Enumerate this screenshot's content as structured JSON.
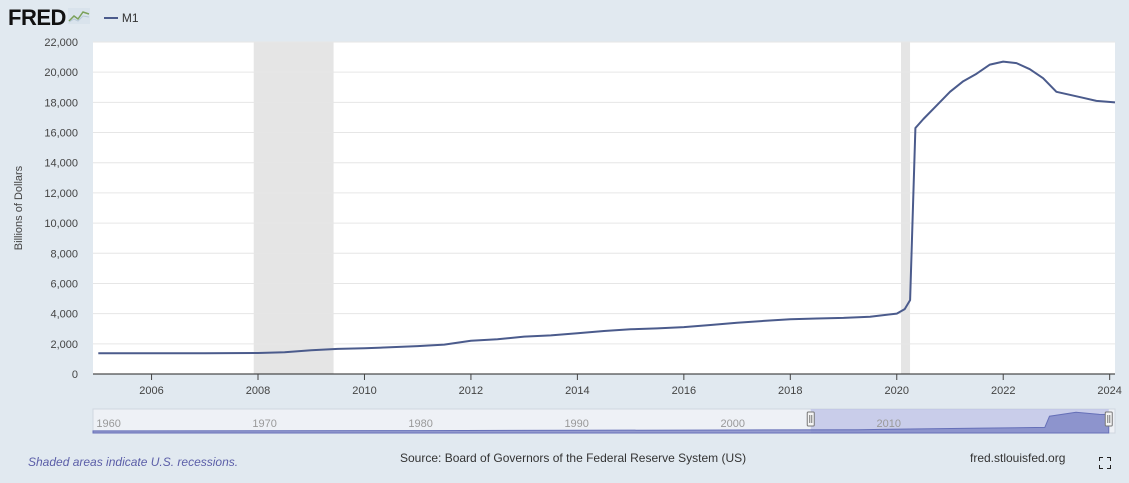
{
  "header": {
    "logo_text": "FRED",
    "legend_label": "M1"
  },
  "colors": {
    "series": "#4b5b8c",
    "recession": "#e5e5e5",
    "background": "#e1e9f0",
    "plot_bg": "#ffffff",
    "grid": "#e6e6e6",
    "navigator_fill": "#7e86c6"
  },
  "chart_data": {
    "type": "line",
    "ylabel": "Billions of Dollars",
    "ylim": [
      0,
      22000
    ],
    "yticks": [
      0,
      2000,
      4000,
      6000,
      8000,
      10000,
      12000,
      14000,
      16000,
      18000,
      20000,
      22000
    ],
    "ytick_labels": [
      "0",
      "2,000",
      "4,000",
      "6,000",
      "8,000",
      "10,000",
      "12,000",
      "14,000",
      "16,000",
      "18,000",
      "20,000",
      "22,000"
    ],
    "xlim": [
      2004.9,
      2024.1
    ],
    "xticks": [
      2006,
      2008,
      2010,
      2012,
      2014,
      2016,
      2018,
      2020,
      2022,
      2024
    ],
    "xtick_labels": [
      "2006",
      "2008",
      "2010",
      "2012",
      "2014",
      "2016",
      "2018",
      "2020",
      "2022",
      "2024"
    ],
    "grid": true,
    "recessions": [
      [
        2007.92,
        2009.42
      ],
      [
        2020.08,
        2020.25
      ]
    ],
    "series": [
      {
        "name": "M1",
        "x": [
          2005.0,
          2006.0,
          2007.0,
          2008.0,
          2008.5,
          2009.0,
          2009.5,
          2010.0,
          2011.0,
          2011.5,
          2012.0,
          2012.5,
          2013.0,
          2013.5,
          2014.0,
          2014.5,
          2015.0,
          2015.5,
          2016.0,
          2016.5,
          2017.0,
          2017.5,
          2018.0,
          2018.5,
          2019.0,
          2019.5,
          2020.0,
          2020.15,
          2020.25,
          2020.35,
          2020.5,
          2020.75,
          2021.0,
          2021.25,
          2021.5,
          2021.75,
          2022.0,
          2022.25,
          2022.5,
          2022.75,
          2023.0,
          2023.25,
          2023.5,
          2023.75,
          2024.1
        ],
        "y": [
          1370,
          1380,
          1370,
          1390,
          1440,
          1570,
          1660,
          1700,
          1850,
          1950,
          2200,
          2300,
          2480,
          2560,
          2700,
          2850,
          2960,
          3020,
          3110,
          3250,
          3400,
          3520,
          3630,
          3680,
          3720,
          3800,
          4000,
          4300,
          4900,
          16300,
          16900,
          17800,
          18700,
          19400,
          19900,
          20500,
          20700,
          20600,
          20200,
          19600,
          18700,
          18500,
          18300,
          18100,
          18000
        ]
      }
    ],
    "navigator": {
      "labels": [
        "1960",
        "1970",
        "1980",
        "1990",
        "2000",
        "2010"
      ],
      "range": [
        1959,
        2024.5
      ],
      "selected": [
        2005,
        2024.1
      ]
    }
  },
  "footer": {
    "note": "Shaded areas indicate U.S. recessions.",
    "source": "Source: Board of Governors of the Federal Reserve System (US)",
    "url": "fred.stlouisfed.org"
  }
}
